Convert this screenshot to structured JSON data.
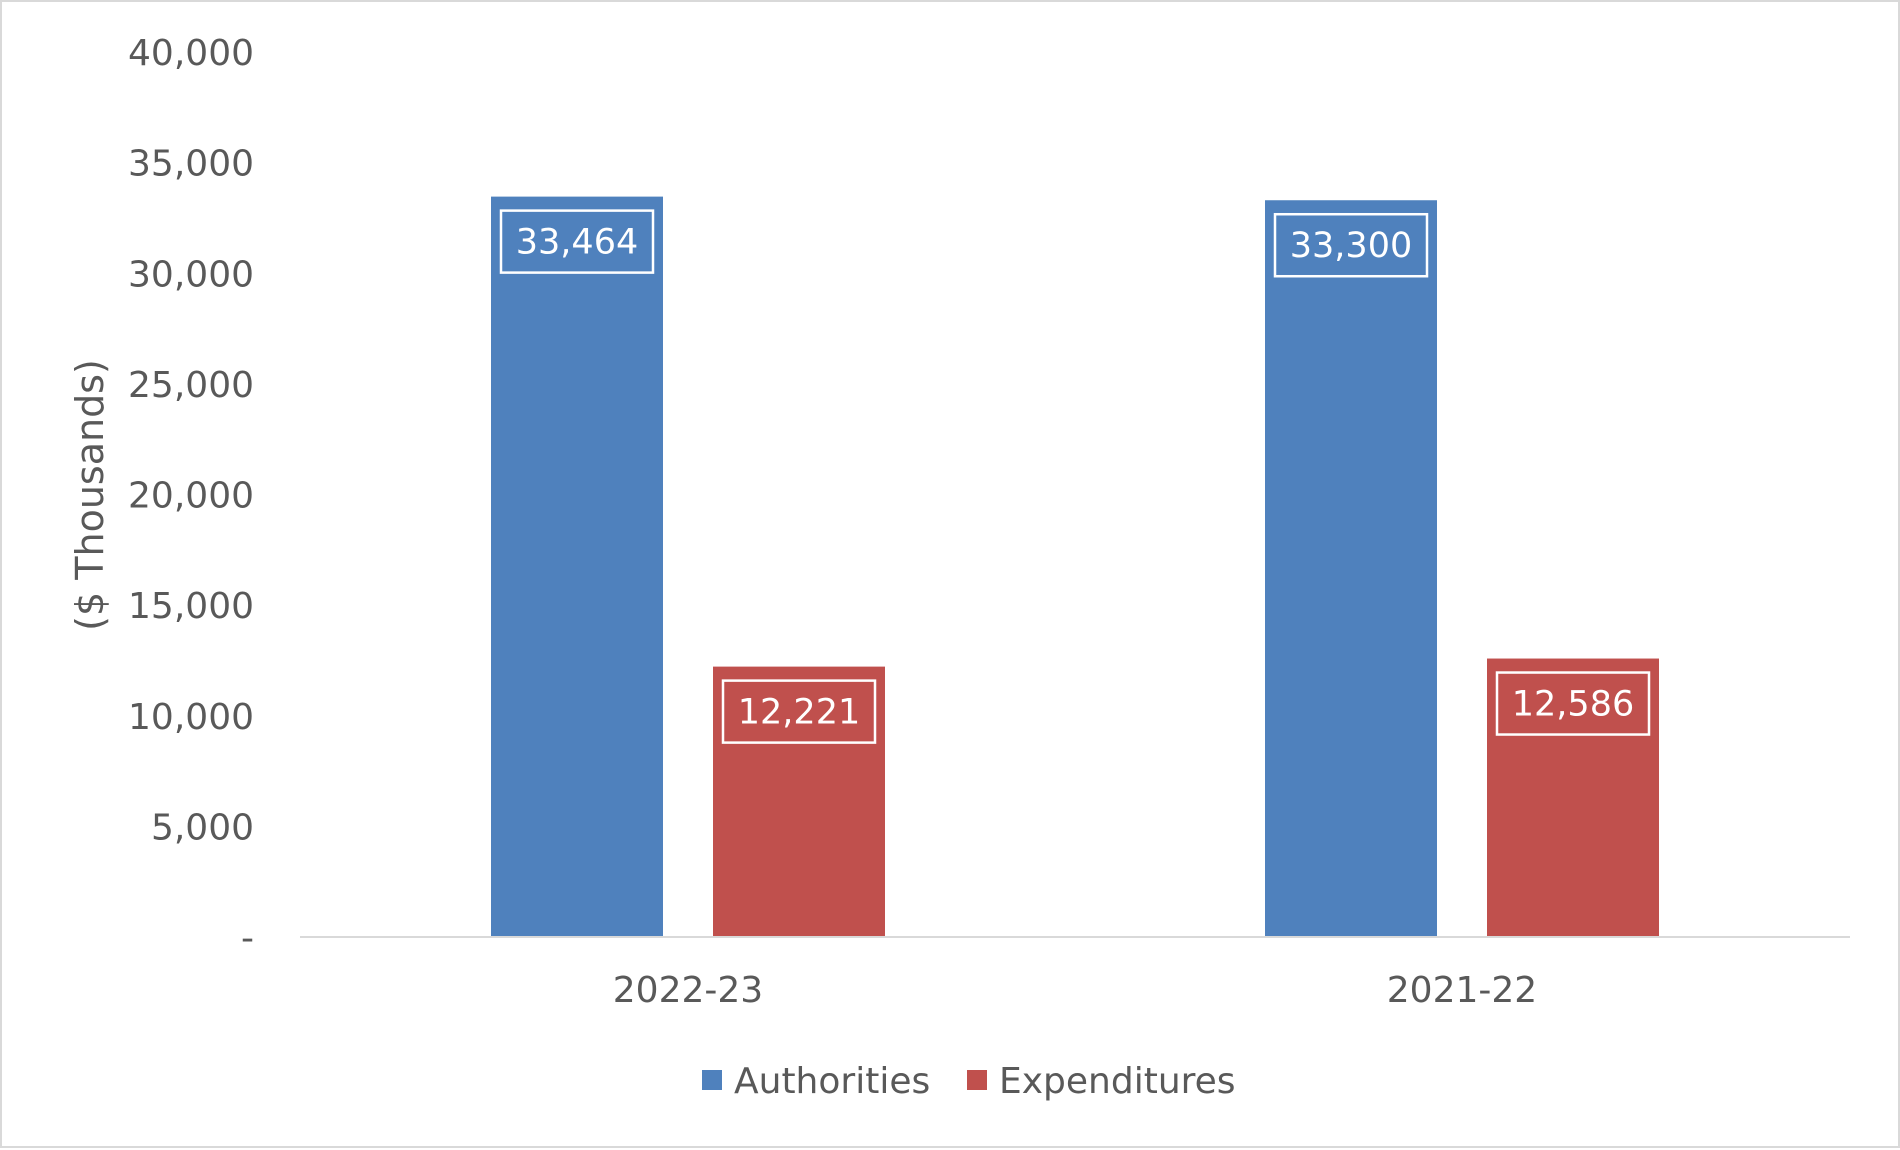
{
  "chart_data": {
    "type": "bar",
    "categories": [
      "2022-23",
      "2021-22"
    ],
    "series": [
      {
        "name": "Authorities",
        "values": [
          33464,
          33300
        ],
        "color": "#4f81bd",
        "labels": [
          "33,464",
          "33,300"
        ]
      },
      {
        "name": "Expenditures",
        "values": [
          12221,
          12586
        ],
        "color": "#c0504d",
        "labels": [
          "12,221",
          "12,586"
        ]
      }
    ],
    "title": "",
    "xlabel": "",
    "ylabel": "($ Thousands)",
    "ylim": [
      0,
      40000
    ],
    "yticks": [
      0,
      5000,
      10000,
      15000,
      20000,
      25000,
      30000,
      35000,
      40000
    ],
    "ytick_labels": [
      "-",
      "5,000",
      "10,000",
      "15,000",
      "20,000",
      "25,000",
      "30,000",
      "35,000",
      "40,000"
    ],
    "grid": false,
    "legend_position": "bottom"
  }
}
